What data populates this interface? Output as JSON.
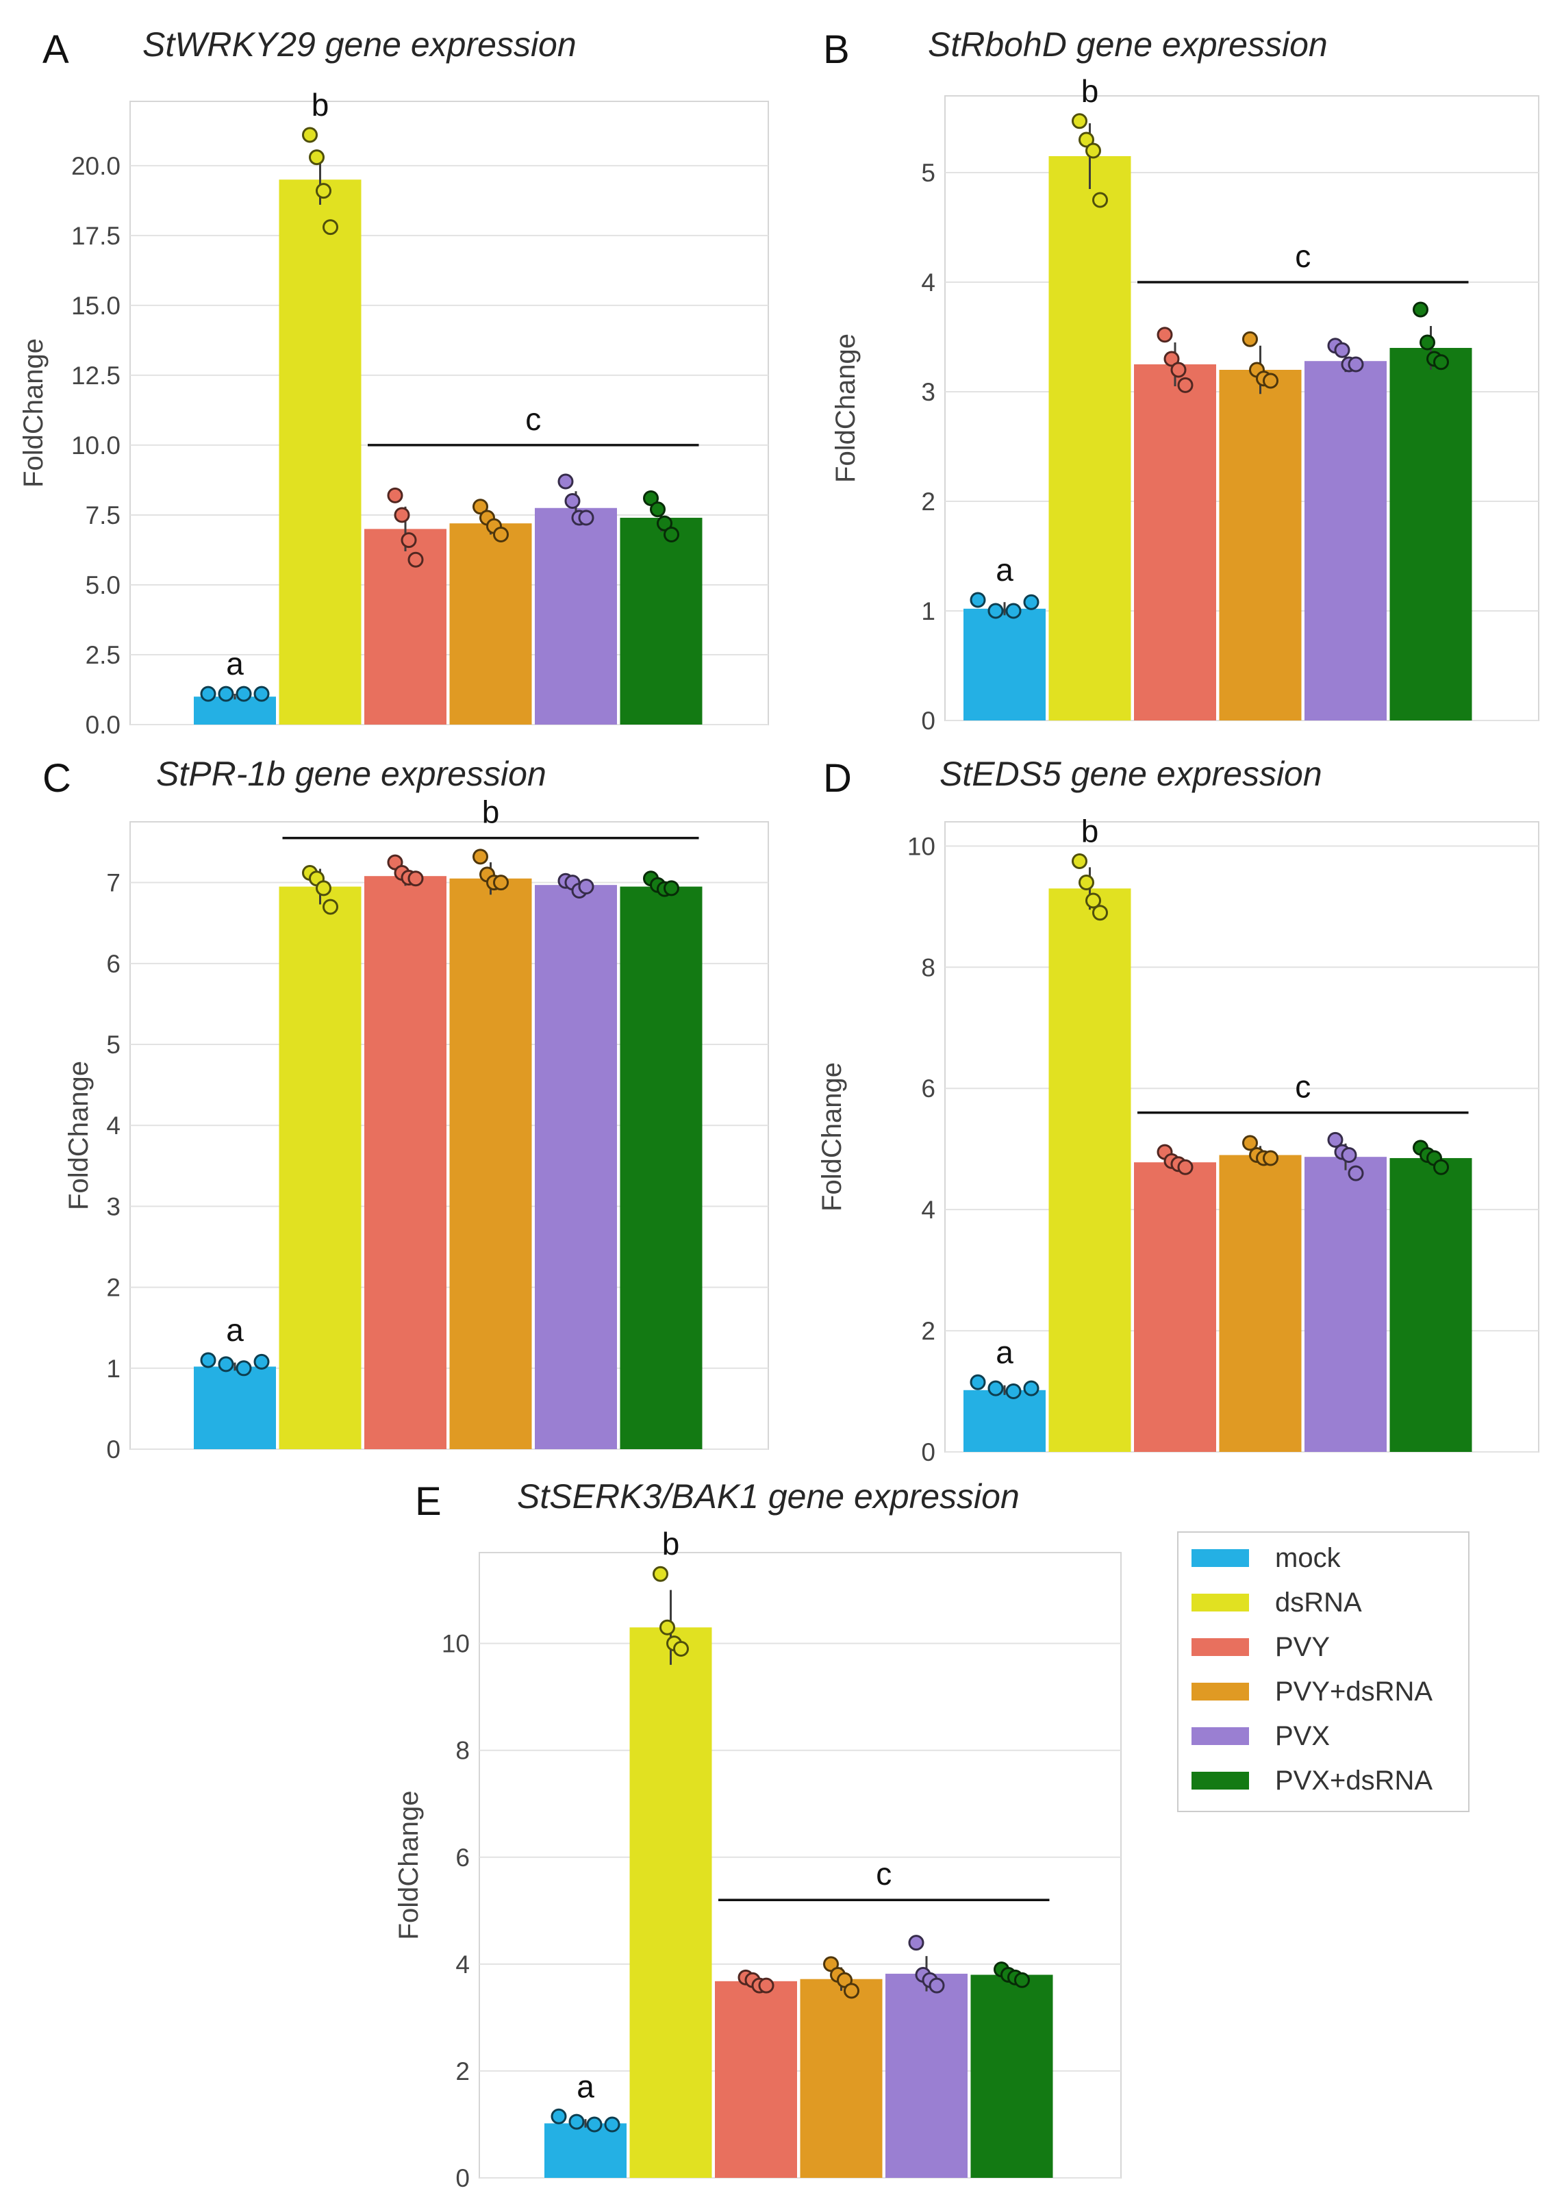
{
  "colors": {
    "mock": "#24b0e4",
    "dsRNA": "#e1e121",
    "PVY": "#e8705e",
    "PVY+dsRNA": "#e09a23",
    "PVX": "#9a7fd2",
    "PVX+dsRNA": "#137a13"
  },
  "legend": {
    "items": [
      "mock",
      "dsRNA",
      "PVY",
      "PVY+dsRNA",
      "PVX",
      "PVX+dsRNA"
    ]
  },
  "chart_data": [
    {
      "type": "bar",
      "panel": "A",
      "title": "StWRKY29 gene expression",
      "ylabel": "FoldChange",
      "categories": [
        "mock",
        "dsRNA",
        "PVY",
        "PVY+dsRNA",
        "PVX",
        "PVX+dsRNA"
      ],
      "values": [
        1.0,
        19.5,
        7.0,
        7.2,
        7.75,
        7.4
      ],
      "errors": [
        0.1,
        0.9,
        0.8,
        0.4,
        0.6,
        0.5
      ],
      "points": [
        [
          1.1,
          1.1,
          1.1,
          1.1
        ],
        [
          21.1,
          20.3,
          19.1,
          17.8
        ],
        [
          8.2,
          7.5,
          6.6,
          5.9
        ],
        [
          7.8,
          7.4,
          7.1,
          6.8
        ],
        [
          8.7,
          8.0,
          7.4,
          7.4
        ],
        [
          8.1,
          7.7,
          7.2,
          6.8
        ]
      ],
      "ylim": [
        0,
        22.3
      ],
      "yticks": [
        "0.0",
        "2.5",
        "5.0",
        "7.5",
        "10.0",
        "12.5",
        "15.0",
        "17.5",
        "20.0"
      ],
      "sig_labels": [
        {
          "text": "a",
          "bar": 0
        },
        {
          "text": "b",
          "bar": 1
        }
      ],
      "sig_line": {
        "text": "c",
        "from": 2,
        "to": 5,
        "y": 10.0
      }
    },
    {
      "type": "bar",
      "panel": "B",
      "title": "StRbohD gene expression",
      "ylabel": "FoldChange",
      "categories": [
        "mock",
        "dsRNA",
        "PVY",
        "PVY+dsRNA",
        "PVX",
        "PVX+dsRNA"
      ],
      "values": [
        1.02,
        5.15,
        3.25,
        3.2,
        3.28,
        3.4
      ],
      "errors": [
        0.06,
        0.3,
        0.2,
        0.22,
        0.1,
        0.2
      ],
      "points": [
        [
          1.1,
          1.0,
          1.0,
          1.08
        ],
        [
          5.47,
          5.3,
          5.2,
          4.75
        ],
        [
          3.52,
          3.3,
          3.2,
          3.06
        ],
        [
          3.48,
          3.2,
          3.12,
          3.1
        ],
        [
          3.42,
          3.38,
          3.25,
          3.25
        ],
        [
          3.75,
          3.45,
          3.3,
          3.27
        ]
      ],
      "ylim": [
        0,
        5.7
      ],
      "yticks": [
        "0",
        "1",
        "2",
        "3",
        "4",
        "5"
      ],
      "sig_labels": [
        {
          "text": "a",
          "bar": 0
        },
        {
          "text": "b",
          "bar": 1
        }
      ],
      "sig_line": {
        "text": "c",
        "from": 2,
        "to": 5,
        "y": 4.0
      }
    },
    {
      "type": "bar",
      "panel": "C",
      "title": "StPR-1b gene expression",
      "ylabel": "FoldChange",
      "categories": [
        "mock",
        "dsRNA",
        "PVY",
        "PVY+dsRNA",
        "PVX",
        "PVX+dsRNA"
      ],
      "values": [
        1.02,
        6.95,
        7.08,
        7.05,
        6.97,
        6.95
      ],
      "errors": [
        0.05,
        0.22,
        0.12,
        0.2,
        0.07,
        0.06
      ],
      "points": [
        [
          1.1,
          1.05,
          1.0,
          1.08
        ],
        [
          7.12,
          7.05,
          6.93,
          6.7
        ],
        [
          7.25,
          7.12,
          7.06,
          7.05
        ],
        [
          7.32,
          7.1,
          7.0,
          7.0
        ],
        [
          7.02,
          7.0,
          6.9,
          6.95
        ],
        [
          7.05,
          6.97,
          6.92,
          6.93
        ]
      ],
      "ylim": [
        0,
        7.75
      ],
      "yticks": [
        "0",
        "1",
        "2",
        "3",
        "4",
        "5",
        "6",
        "7"
      ],
      "sig_labels": [
        {
          "text": "a",
          "bar": 0
        }
      ],
      "sig_line": {
        "text": "b",
        "from": 1,
        "to": 5,
        "y": 7.55
      }
    },
    {
      "type": "bar",
      "panel": "D",
      "title": "StEDS5 gene expression",
      "ylabel": "FoldChange",
      "categories": [
        "mock",
        "dsRNA",
        "PVY",
        "PVY+dsRNA",
        "PVX",
        "PVX+dsRNA"
      ],
      "values": [
        1.02,
        9.3,
        4.78,
        4.9,
        4.87,
        4.85
      ],
      "errors": [
        0.08,
        0.35,
        0.1,
        0.15,
        0.22,
        0.12
      ],
      "points": [
        [
          1.15,
          1.05,
          1.0,
          1.05
        ],
        [
          9.75,
          9.4,
          9.1,
          8.9
        ],
        [
          4.95,
          4.8,
          4.75,
          4.7
        ],
        [
          5.1,
          4.9,
          4.85,
          4.85
        ],
        [
          5.15,
          4.95,
          4.9,
          4.6
        ],
        [
          5.02,
          4.9,
          4.85,
          4.7
        ]
      ],
      "ylim": [
        0,
        10.4
      ],
      "yticks": [
        "0",
        "2",
        "4",
        "6",
        "8",
        "10"
      ],
      "sig_labels": [
        {
          "text": "a",
          "bar": 0
        },
        {
          "text": "b",
          "bar": 1
        }
      ],
      "sig_line": {
        "text": "c",
        "from": 2,
        "to": 5,
        "y": 5.6
      }
    },
    {
      "type": "bar",
      "panel": "E",
      "title": "StSERK3/BAK1 gene expression",
      "ylabel": "FoldChange",
      "categories": [
        "mock",
        "dsRNA",
        "PVY",
        "PVY+dsRNA",
        "PVX",
        "PVX+dsRNA"
      ],
      "values": [
        1.02,
        10.3,
        3.68,
        3.72,
        3.82,
        3.8
      ],
      "errors": [
        0.08,
        0.7,
        0.12,
        0.22,
        0.33,
        0.1
      ],
      "points": [
        [
          1.15,
          1.05,
          1.0,
          1.0
        ],
        [
          11.3,
          10.3,
          10.0,
          9.9
        ],
        [
          3.75,
          3.7,
          3.6,
          3.6
        ],
        [
          4.0,
          3.8,
          3.7,
          3.5
        ],
        [
          4.4,
          3.8,
          3.7,
          3.6
        ],
        [
          3.9,
          3.8,
          3.75,
          3.7
        ]
      ],
      "ylim": [
        0,
        11.7
      ],
      "yticks": [
        "0",
        "2",
        "4",
        "6",
        "8",
        "10"
      ],
      "sig_labels": [
        {
          "text": "a",
          "bar": 0
        },
        {
          "text": "b",
          "bar": 1
        }
      ],
      "sig_line": {
        "text": "c",
        "from": 2,
        "to": 5,
        "y": 5.2
      }
    }
  ]
}
